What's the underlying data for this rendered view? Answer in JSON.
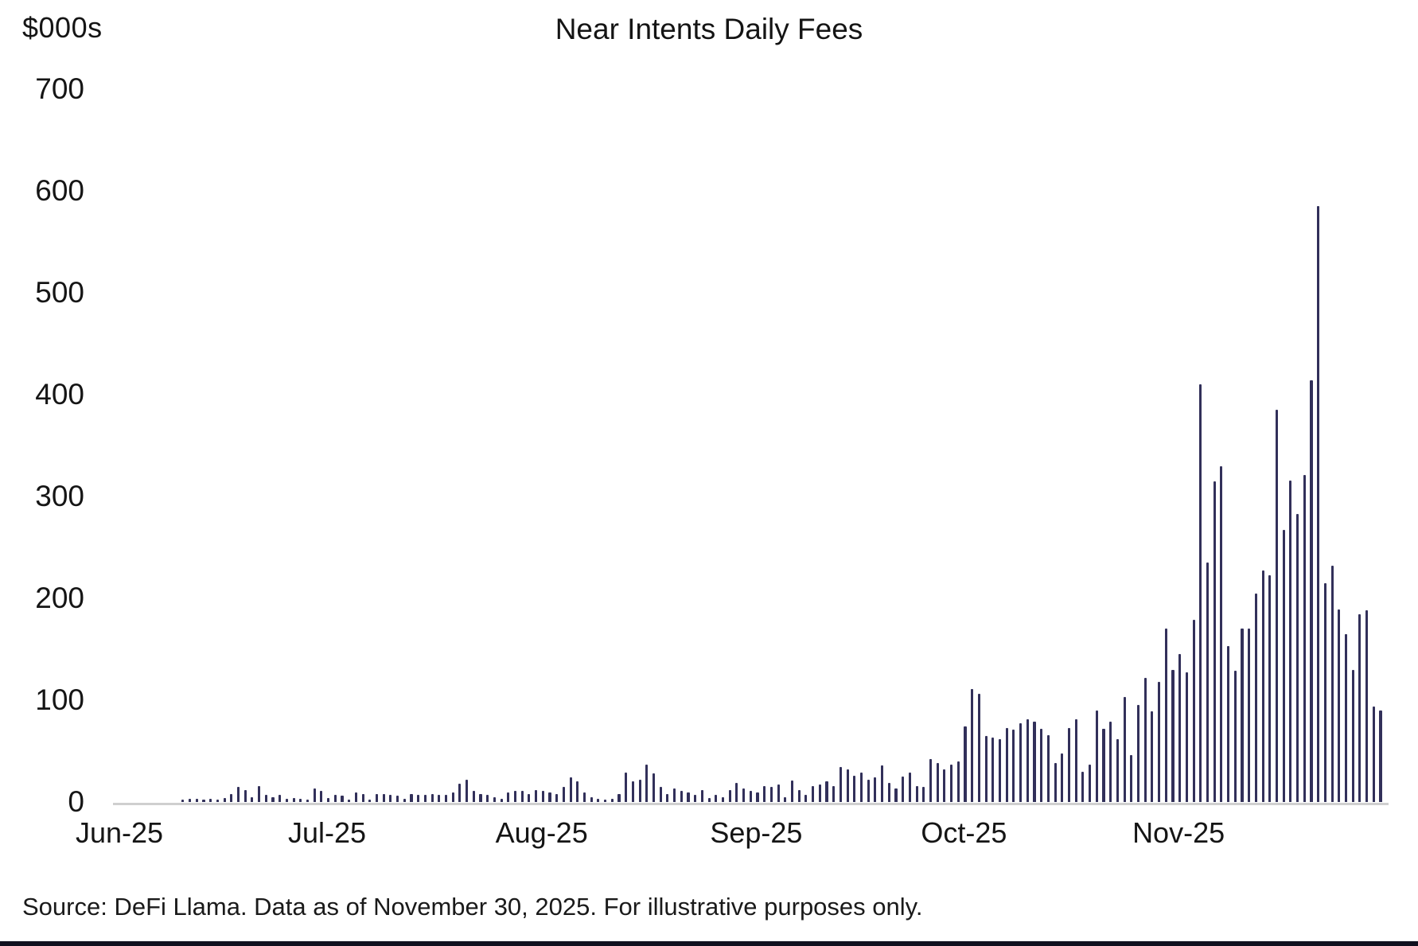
{
  "header": {
    "unit_label": "$000s",
    "title": "Near Intents Daily Fees"
  },
  "y_axis": {
    "ticks": [
      700,
      600,
      500,
      400,
      300,
      200,
      100,
      0
    ]
  },
  "x_axis": {
    "month_labels": [
      "Jun-25",
      "Jul-25",
      "Aug-25",
      "Sep-25",
      "Oct-25",
      "Nov-25"
    ]
  },
  "footer": {
    "source": "Source: DeFi Llama. Data as of November 30, 2025. For illustrative purposes only."
  },
  "colors": {
    "bar": "#32305a",
    "axis_line": "#cfcfcf",
    "text": "#141414",
    "bottom_strip": "#10101e"
  },
  "chart_data": {
    "type": "bar",
    "title": "Near Intents Daily Fees",
    "xlabel": "",
    "ylabel": "$000s",
    "ylim": [
      0,
      700
    ],
    "grid": false,
    "legend": "none",
    "x_unit": "day",
    "months": [
      {
        "label": "Jun-25",
        "values": [
          0,
          0,
          0,
          0,
          0,
          0,
          0,
          0,
          0,
          2,
          3,
          3,
          2,
          3,
          2,
          4,
          8,
          15,
          12,
          5,
          16,
          7,
          5,
          7,
          3,
          4,
          3,
          2,
          13,
          11
        ]
      },
      {
        "label": "Jul-25",
        "values": [
          4,
          7,
          6,
          2,
          9,
          8,
          2,
          8,
          8,
          7,
          6,
          3,
          8,
          7,
          7,
          8,
          7,
          7,
          9,
          18,
          22,
          11,
          8,
          7,
          5,
          3,
          9,
          11,
          11,
          8,
          12
        ]
      },
      {
        "label": "Aug-25",
        "values": [
          11,
          9,
          8,
          15,
          24,
          20,
          9,
          5,
          3,
          2,
          3,
          8,
          29,
          20,
          22,
          37,
          28,
          15,
          8,
          13,
          11,
          9,
          7,
          12,
          4,
          7,
          5,
          12,
          19,
          13,
          11
        ]
      },
      {
        "label": "Sep-25",
        "values": [
          9,
          16,
          15,
          17,
          5,
          21,
          12,
          7,
          16,
          17,
          20,
          16,
          34,
          32,
          26,
          29,
          22,
          24,
          36,
          19,
          13,
          25,
          29,
          16,
          15,
          42,
          38,
          32,
          37,
          40
        ]
      },
      {
        "label": "Oct-25",
        "values": [
          74,
          111,
          106,
          65,
          63,
          62,
          73,
          71,
          77,
          81,
          79,
          72,
          66,
          38,
          48,
          73,
          81,
          30,
          37,
          90,
          72,
          79,
          62,
          103,
          46,
          95,
          122,
          89,
          118,
          170,
          130
        ]
      },
      {
        "label": "Nov-25",
        "values": [
          145,
          127,
          179,
          410,
          235,
          315,
          330,
          153,
          129,
          170,
          170,
          205,
          227,
          223,
          385,
          267,
          316,
          283,
          321,
          414,
          585,
          215,
          232,
          189,
          165,
          130,
          184,
          188,
          94,
          90
        ]
      }
    ]
  }
}
